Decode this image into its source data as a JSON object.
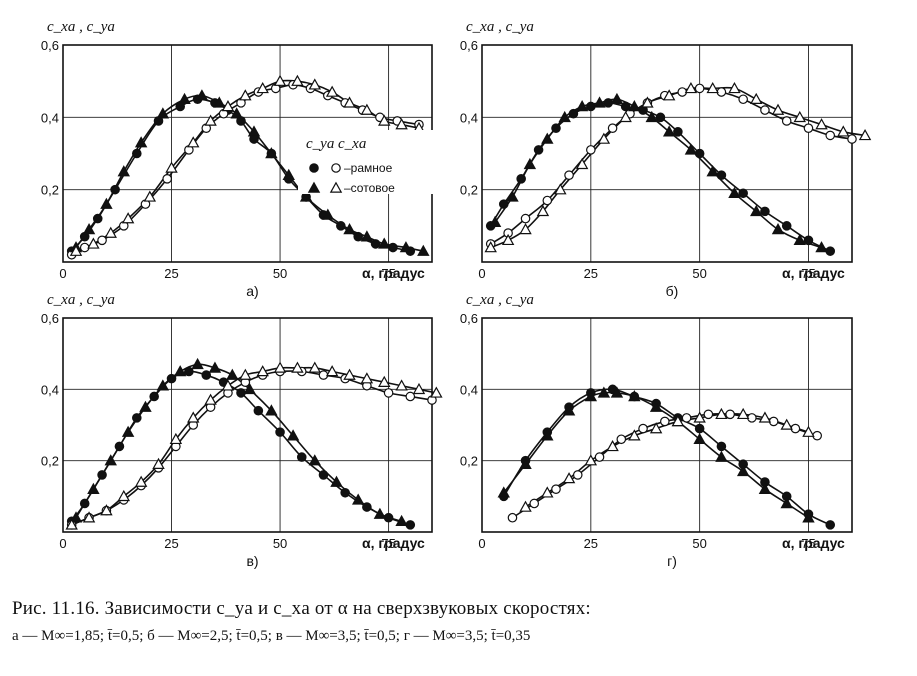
{
  "chart_data": [
    {
      "type": "scatter",
      "ylabel": "c_xa , c_ya",
      "xlabel": "α, градус",
      "sublabel": "а)",
      "x_ticks": [
        "0",
        "25",
        "50",
        "75"
      ],
      "y_ticks": [
        "0,2",
        "0,4",
        "0,6"
      ],
      "xlim": [
        0,
        85
      ],
      "ylim": [
        0,
        0.6
      ],
      "grid": true,
      "legend": {
        "position": "right",
        "head_cy": "c_ya",
        "head_cx": "c_xa",
        "rows": [
          "–рамное",
          "–сотовое"
        ]
      },
      "series": [
        {
          "marker": "filled-circle",
          "x": [
            2,
            5,
            8,
            12,
            17,
            22,
            27,
            31,
            35,
            38,
            41,
            44,
            48,
            52,
            56,
            60,
            64,
            68,
            72,
            76,
            80
          ],
          "y": [
            0.03,
            0.07,
            0.12,
            0.2,
            0.3,
            0.39,
            0.43,
            0.45,
            0.44,
            0.42,
            0.39,
            0.34,
            0.3,
            0.23,
            0.18,
            0.13,
            0.1,
            0.07,
            0.05,
            0.04,
            0.03
          ]
        },
        {
          "marker": "open-circle",
          "x": [
            2,
            5,
            9,
            14,
            19,
            24,
            29,
            33,
            37,
            41,
            45,
            49,
            53,
            57,
            61,
            65,
            69,
            73,
            77,
            82
          ],
          "y": [
            0.02,
            0.04,
            0.06,
            0.1,
            0.16,
            0.23,
            0.31,
            0.37,
            0.41,
            0.44,
            0.47,
            0.48,
            0.49,
            0.48,
            0.46,
            0.44,
            0.42,
            0.4,
            0.39,
            0.38
          ]
        },
        {
          "marker": "filled-triangle",
          "x": [
            3,
            6,
            10,
            14,
            18,
            23,
            28,
            32,
            36,
            40,
            44,
            48,
            52,
            56,
            61,
            66,
            70,
            74,
            79,
            83
          ],
          "y": [
            0.04,
            0.09,
            0.16,
            0.25,
            0.33,
            0.41,
            0.45,
            0.46,
            0.44,
            0.41,
            0.36,
            0.3,
            0.24,
            0.18,
            0.13,
            0.09,
            0.07,
            0.05,
            0.04,
            0.03
          ]
        },
        {
          "marker": "open-triangle",
          "x": [
            3,
            7,
            11,
            15,
            20,
            25,
            30,
            34,
            38,
            42,
            46,
            50,
            54,
            58,
            62,
            66,
            70,
            74,
            78,
            82
          ],
          "y": [
            0.03,
            0.05,
            0.08,
            0.12,
            0.18,
            0.26,
            0.33,
            0.39,
            0.43,
            0.46,
            0.48,
            0.5,
            0.5,
            0.49,
            0.47,
            0.44,
            0.42,
            0.39,
            0.38,
            0.37
          ]
        }
      ]
    },
    {
      "type": "scatter",
      "ylabel": "c_xa , c_ya",
      "xlabel": "α, градус",
      "sublabel": "б)",
      "x_ticks": [
        "0",
        "25",
        "50",
        "75"
      ],
      "y_ticks": [
        "0,2",
        "0,4",
        "0,6"
      ],
      "xlim": [
        0,
        85
      ],
      "ylim": [
        0,
        0.6
      ],
      "grid": true,
      "series": [
        {
          "marker": "filled-circle",
          "x": [
            2,
            5,
            9,
            13,
            17,
            21,
            25,
            29,
            33,
            37,
            41,
            45,
            50,
            55,
            60,
            65,
            70,
            75,
            80
          ],
          "y": [
            0.1,
            0.16,
            0.23,
            0.31,
            0.37,
            0.41,
            0.43,
            0.44,
            0.43,
            0.42,
            0.4,
            0.36,
            0.3,
            0.24,
            0.19,
            0.14,
            0.1,
            0.06,
            0.03
          ]
        },
        {
          "marker": "open-circle",
          "x": [
            2,
            6,
            10,
            15,
            20,
            25,
            30,
            34,
            38,
            42,
            46,
            50,
            55,
            60,
            65,
            70,
            75,
            80,
            85
          ],
          "y": [
            0.05,
            0.08,
            0.12,
            0.17,
            0.24,
            0.31,
            0.37,
            0.41,
            0.44,
            0.46,
            0.47,
            0.48,
            0.47,
            0.45,
            0.42,
            0.39,
            0.37,
            0.35,
            0.34
          ]
        },
        {
          "marker": "filled-triangle",
          "x": [
            3,
            7,
            11,
            15,
            19,
            23,
            27,
            31,
            35,
            39,
            43,
            48,
            53,
            58,
            63,
            68,
            73,
            78
          ],
          "y": [
            0.11,
            0.18,
            0.27,
            0.34,
            0.4,
            0.43,
            0.44,
            0.45,
            0.43,
            0.4,
            0.36,
            0.31,
            0.25,
            0.19,
            0.14,
            0.09,
            0.06,
            0.04
          ]
        },
        {
          "marker": "open-triangle",
          "x": [
            2,
            6,
            10,
            14,
            18,
            23,
            28,
            33,
            38,
            43,
            48,
            53,
            58,
            63,
            68,
            73,
            78,
            83,
            88
          ],
          "y": [
            0.04,
            0.06,
            0.09,
            0.14,
            0.2,
            0.27,
            0.34,
            0.4,
            0.44,
            0.46,
            0.48,
            0.48,
            0.48,
            0.45,
            0.42,
            0.4,
            0.38,
            0.36,
            0.35
          ]
        }
      ]
    },
    {
      "type": "scatter",
      "ylabel": "c_xa , c_ya",
      "xlabel": "α, градус",
      "sublabel": "в)",
      "x_ticks": [
        "0",
        "25",
        "50",
        "75"
      ],
      "y_ticks": [
        "0,2",
        "0,4",
        "0,6"
      ],
      "xlim": [
        0,
        85
      ],
      "ylim": [
        0,
        0.6
      ],
      "grid": true,
      "series": [
        {
          "marker": "filled-circle",
          "x": [
            2,
            5,
            9,
            13,
            17,
            21,
            25,
            29,
            33,
            37,
            41,
            45,
            50,
            55,
            60,
            65,
            70,
            75,
            80
          ],
          "y": [
            0.03,
            0.08,
            0.16,
            0.24,
            0.32,
            0.38,
            0.43,
            0.45,
            0.44,
            0.42,
            0.39,
            0.34,
            0.28,
            0.21,
            0.16,
            0.11,
            0.07,
            0.04,
            0.02
          ]
        },
        {
          "marker": "open-circle",
          "x": [
            2,
            6,
            10,
            14,
            18,
            22,
            26,
            30,
            34,
            38,
            42,
            46,
            50,
            55,
            60,
            65,
            70,
            75,
            80,
            85
          ],
          "y": [
            0.02,
            0.04,
            0.06,
            0.09,
            0.13,
            0.18,
            0.24,
            0.3,
            0.35,
            0.39,
            0.42,
            0.44,
            0.45,
            0.45,
            0.44,
            0.43,
            0.41,
            0.39,
            0.38,
            0.37
          ]
        },
        {
          "marker": "filled-triangle",
          "x": [
            3,
            7,
            11,
            15,
            19,
            23,
            27,
            31,
            35,
            39,
            43,
            48,
            53,
            58,
            63,
            68,
            73,
            78
          ],
          "y": [
            0.04,
            0.12,
            0.2,
            0.28,
            0.35,
            0.41,
            0.45,
            0.47,
            0.46,
            0.44,
            0.4,
            0.34,
            0.27,
            0.2,
            0.14,
            0.09,
            0.05,
            0.03
          ]
        },
        {
          "marker": "open-triangle",
          "x": [
            2,
            6,
            10,
            14,
            18,
            22,
            26,
            30,
            34,
            38,
            42,
            46,
            50,
            54,
            58,
            62,
            66,
            70,
            74,
            78,
            82,
            86
          ],
          "y": [
            0.02,
            0.04,
            0.06,
            0.1,
            0.14,
            0.19,
            0.26,
            0.32,
            0.37,
            0.41,
            0.44,
            0.45,
            0.46,
            0.46,
            0.46,
            0.45,
            0.44,
            0.43,
            0.42,
            0.41,
            0.4,
            0.39
          ]
        }
      ]
    },
    {
      "type": "scatter",
      "ylabel": "c_xa , c_ya",
      "xlabel": "α, градус",
      "sublabel": "г)",
      "x_ticks": [
        "0",
        "25",
        "50",
        "75"
      ],
      "y_ticks": [
        "0,2",
        "0,4",
        "0,6"
      ],
      "xlim": [
        0,
        85
      ],
      "ylim": [
        0,
        0.6
      ],
      "grid": true,
      "series": [
        {
          "marker": "filled-circle",
          "x": [
            5,
            10,
            15,
            20,
            25,
            30,
            35,
            40,
            45,
            50,
            55,
            60,
            65,
            70,
            75,
            80
          ],
          "y": [
            0.1,
            0.2,
            0.28,
            0.35,
            0.39,
            0.4,
            0.38,
            0.36,
            0.32,
            0.29,
            0.24,
            0.19,
            0.14,
            0.1,
            0.05,
            0.02
          ]
        },
        {
          "marker": "open-circle",
          "x": [
            7,
            12,
            17,
            22,
            27,
            32,
            37,
            42,
            47,
            52,
            57,
            62,
            67,
            72,
            77
          ],
          "y": [
            0.04,
            0.08,
            0.12,
            0.16,
            0.21,
            0.26,
            0.29,
            0.31,
            0.32,
            0.33,
            0.33,
            0.32,
            0.31,
            0.29,
            0.27
          ]
        },
        {
          "marker": "filled-triangle",
          "x": [
            5,
            10,
            15,
            20,
            25,
            28,
            31,
            35,
            40,
            45,
            50,
            55,
            60,
            65,
            70,
            75
          ],
          "y": [
            0.11,
            0.19,
            0.27,
            0.34,
            0.38,
            0.39,
            0.39,
            0.38,
            0.35,
            0.31,
            0.26,
            0.21,
            0.17,
            0.12,
            0.08,
            0.04
          ]
        },
        {
          "marker": "open-triangle",
          "x": [
            10,
            15,
            20,
            25,
            30,
            35,
            40,
            45,
            50,
            55,
            60,
            65,
            70,
            75
          ],
          "y": [
            0.07,
            0.11,
            0.15,
            0.2,
            0.24,
            0.27,
            0.29,
            0.31,
            0.32,
            0.33,
            0.33,
            0.32,
            0.3,
            0.28
          ]
        }
      ]
    }
  ],
  "caption": {
    "title": "Рис. 11.16. Зависимости c_ya и c_xa от α на сверхзвуковых скоростях:",
    "params": "а — M∞=1,85;  t̄=0,5;  б — M∞=2,5;  t̄=0,5;  в — M∞=3,5;  t̄=0,5;  г — M∞=3,5;  t̄=0,35"
  }
}
